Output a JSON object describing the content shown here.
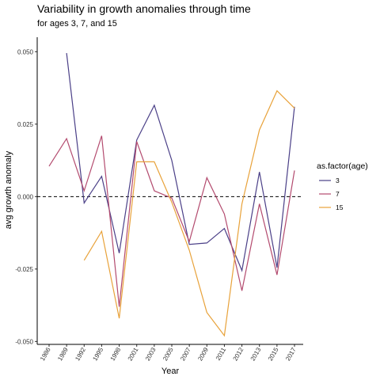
{
  "chart_data": {
    "type": "line",
    "title": "Variability in growth anomalies through time",
    "subtitle": "for ages 3, 7, and 15",
    "xlabel": "Year",
    "ylabel": "avg growth anomaly",
    "categories": [
      "1986",
      "1989",
      "1992",
      "1995",
      "1998",
      "2001",
      "2003",
      "2005",
      "2007",
      "2009",
      "2011",
      "2012",
      "2013",
      "2015",
      "2017"
    ],
    "ylim": [
      -0.051,
      0.055
    ],
    "yticks": [
      0.05,
      0.025,
      0.0,
      -0.025,
      -0.05
    ],
    "ytick_labels": [
      "0.050",
      "0.025",
      "0.000",
      "-0.025",
      "-0.050"
    ],
    "reference_line": 0,
    "grid": false,
    "legend_title": "as.factor(age)",
    "legend_position": "right",
    "series": [
      {
        "name": "3",
        "color": "#4a3f87",
        "values": [
          null,
          0.0495,
          -0.0022,
          0.007,
          -0.0195,
          0.0195,
          0.0315,
          0.0125,
          -0.0165,
          -0.016,
          -0.011,
          -0.0255,
          0.0085,
          -0.0245,
          0.031
        ]
      },
      {
        "name": "7",
        "color": "#b34a6e",
        "values": [
          0.0105,
          0.02,
          0.002,
          0.021,
          -0.038,
          0.019,
          0.002,
          -0.0005,
          -0.0155,
          0.0065,
          -0.006,
          -0.0325,
          -0.0025,
          -0.027,
          0.009
        ]
      },
      {
        "name": "15",
        "color": "#e8a23a",
        "values": [
          null,
          null,
          -0.022,
          -0.012,
          -0.042,
          0.012,
          0.012,
          -0.002,
          -0.0185,
          -0.04,
          -0.048,
          -0.0025,
          0.023,
          0.0365,
          0.0305
        ]
      }
    ]
  }
}
